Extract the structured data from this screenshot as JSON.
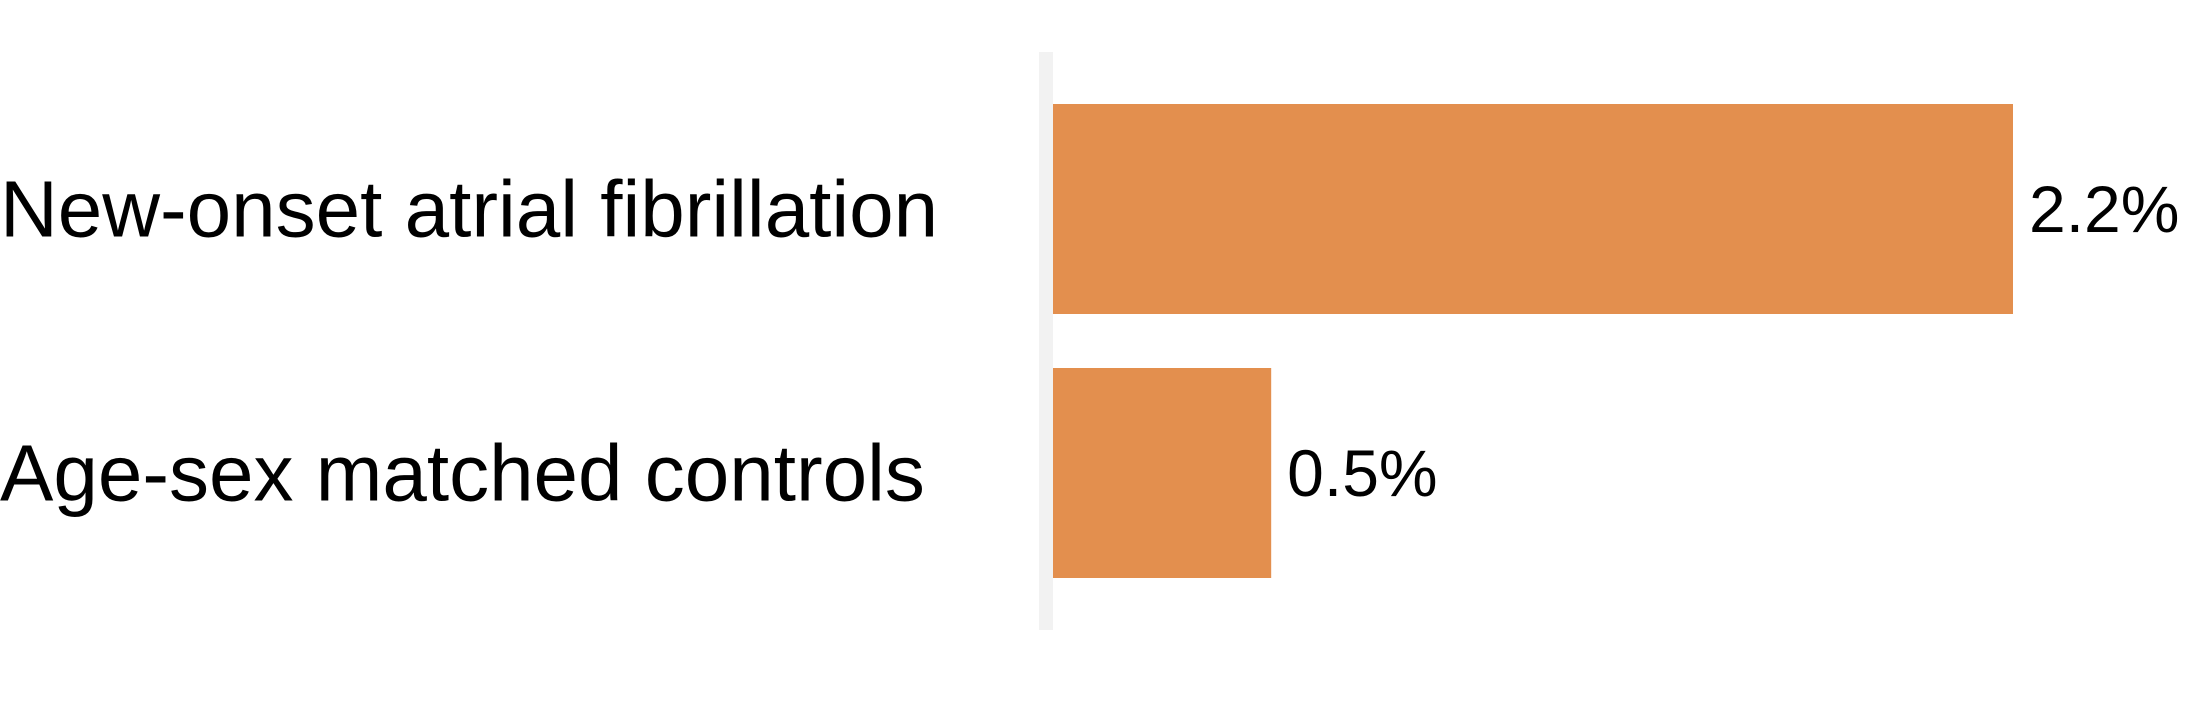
{
  "chart_data": {
    "type": "bar",
    "orientation": "horizontal",
    "categories": [
      "New-onset atrial fibrillation",
      "Age-sex matched controls"
    ],
    "values": [
      2.2,
      0.5
    ],
    "value_labels": [
      "2.2%",
      "0.5%"
    ],
    "unit": "%",
    "title": "",
    "xlabel": "",
    "ylabel": "",
    "xlim": [
      0,
      2.2
    ],
    "grid": false,
    "legend": "none",
    "colors": {
      "bar": "#E38F4E",
      "baseline": "#F2F2F2",
      "text": "#000000"
    }
  }
}
